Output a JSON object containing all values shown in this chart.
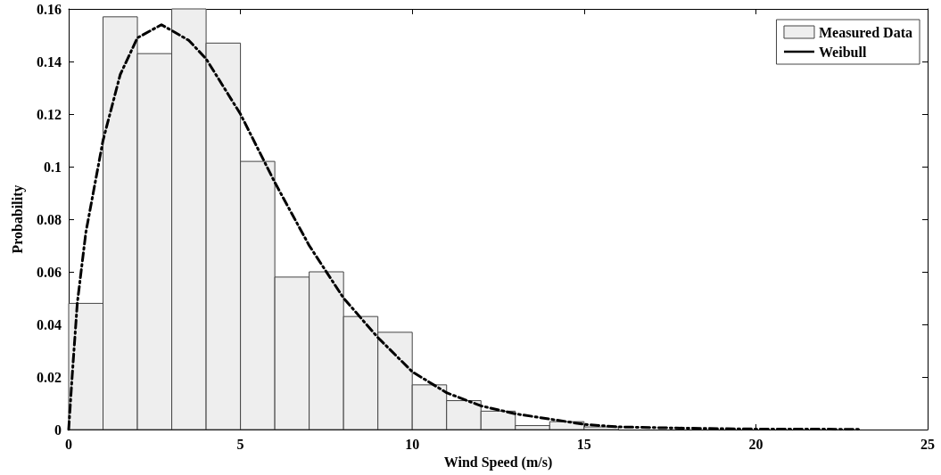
{
  "chart_data": {
    "type": "histogram",
    "xlabel": "Wind Speed (m/s)",
    "ylabel": "Probability",
    "xlim": [
      0,
      25
    ],
    "xticks": [
      0,
      5,
      10,
      15,
      20,
      25
    ],
    "ylim": [
      0,
      0.16
    ],
    "yticks": [
      0,
      0.02,
      0.04,
      0.06,
      0.08,
      0.1,
      0.12,
      0.14,
      0.16
    ],
    "grid": false,
    "legend": "top right",
    "series": [
      {
        "name": "Measured Data",
        "color": "#eeeeee",
        "bins": [
          0,
          1,
          2,
          3,
          4,
          5,
          6,
          7,
          8,
          9,
          10,
          11,
          12,
          13,
          14,
          15,
          16
        ],
        "values": [
          0.048,
          0.157,
          0.143,
          0.16,
          0.147,
          0.102,
          0.058,
          0.06,
          0.043,
          0.037,
          0.017,
          0.011,
          0.007,
          0.0015,
          0.003,
          0.001
        ]
      },
      {
        "type": "line",
        "name": "Weibull",
        "color": "#000000",
        "line_style": "dashed",
        "marker": "none",
        "x": [
          0,
          0.1,
          0.25,
          0.5,
          1,
          1.5,
          2,
          2.7,
          3.5,
          4,
          5,
          6,
          7,
          8,
          9,
          10,
          11,
          12,
          13,
          14,
          15,
          16,
          18,
          20,
          23
        ],
        "values": [
          0,
          0.02,
          0.048,
          0.075,
          0.11,
          0.135,
          0.149,
          0.154,
          0.148,
          0.141,
          0.12,
          0.094,
          0.07,
          0.05,
          0.035,
          0.022,
          0.014,
          0.009,
          0.006,
          0.004,
          0.002,
          0.001,
          0.0005,
          0.0002,
          0.0001
        ]
      }
    ]
  }
}
